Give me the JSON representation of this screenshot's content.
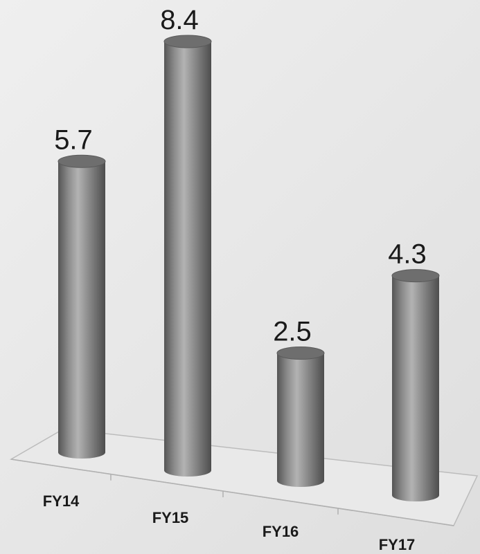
{
  "chart_data": {
    "type": "bar",
    "style": "3d-cylinder",
    "categories": [
      "FY14",
      "FY15",
      "FY16",
      "FY17"
    ],
    "values": [
      5.7,
      8.4,
      2.5,
      4.3
    ],
    "data_labels": [
      "5.7",
      "8.4",
      "2.5",
      "4.3"
    ],
    "ylim": [
      0,
      8.4
    ],
    "grid": false,
    "legend": "none",
    "colors": {
      "bar": "#8a8a8a",
      "bar_dark": "#4f4f4f",
      "bar_light": "#bdbdbd",
      "cap": "#6e6e6e",
      "floor": "#e9e9e9",
      "axis_line": "#bcbcbc",
      "label_text": "#1a1a1a"
    }
  }
}
